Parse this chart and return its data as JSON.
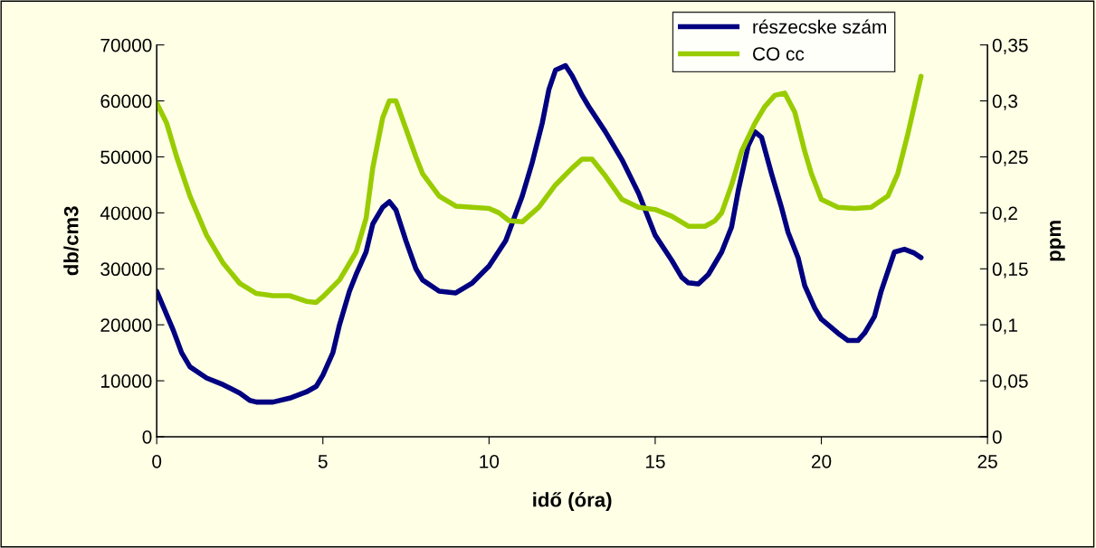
{
  "chart_data": {
    "type": "line",
    "xlabel": "idő (óra)",
    "ylabel": "db/cm3",
    "y2label": "ppm",
    "xlim": [
      0,
      25
    ],
    "xticks": [
      0,
      5,
      10,
      15,
      20,
      25
    ],
    "ylim": [
      0,
      70000
    ],
    "yticks": [
      0,
      10000,
      20000,
      30000,
      40000,
      50000,
      60000,
      70000
    ],
    "y2lim": [
      0,
      0.35
    ],
    "y2ticks": [
      {
        "value": 0,
        "label": "0"
      },
      {
        "value": 0.05,
        "label": "0,05"
      },
      {
        "value": 0.1,
        "label": "0,1"
      },
      {
        "value": 0.15,
        "label": "0,15"
      },
      {
        "value": 0.2,
        "label": "0,2"
      },
      {
        "value": 0.25,
        "label": "0,25"
      },
      {
        "value": 0.3,
        "label": "0,3"
      },
      {
        "value": 0.35,
        "label": "0,35"
      }
    ],
    "grid": false,
    "legend": "top right",
    "marker": "none",
    "line_style": "solid",
    "series": [
      {
        "name": "részecske szám",
        "color": "#000080",
        "x": [
          0,
          0.5,
          0.75,
          1,
          1.5,
          2,
          2.5,
          2.8,
          3,
          3.5,
          4,
          4.5,
          4.8,
          5,
          5.3,
          5.5,
          5.8,
          6,
          6.3,
          6.5,
          6.8,
          7,
          7.2,
          7.5,
          7.8,
          8,
          8.5,
          9,
          9.5,
          10,
          10.5,
          11,
          11.3,
          11.6,
          11.8,
          12,
          12.3,
          12.5,
          12.8,
          13,
          13.5,
          14,
          14.5,
          14.8,
          15,
          15.5,
          15.8,
          16,
          16.3,
          16.6,
          17,
          17.3,
          17.5,
          17.8,
          18,
          18.2,
          18.5,
          18.8,
          19,
          19.3,
          19.5,
          19.8,
          20,
          20.5,
          20.8,
          21.1,
          21.3,
          21.6,
          21.8,
          22,
          22.2,
          22.5,
          22.8,
          23
        ],
        "values": [
          26000,
          19000,
          15000,
          12500,
          10500,
          9300,
          7800,
          6500,
          6200,
          6200,
          6900,
          8000,
          9000,
          11000,
          15000,
          20000,
          26000,
          29000,
          33000,
          38000,
          41000,
          42000,
          40500,
          35000,
          30000,
          28000,
          26000,
          25700,
          27500,
          30500,
          35000,
          43000,
          49000,
          56000,
          62000,
          65500,
          66300,
          64500,
          61000,
          59000,
          54500,
          49500,
          43500,
          39000,
          36000,
          31500,
          28500,
          27500,
          27300,
          29000,
          33000,
          37500,
          44000,
          52000,
          54500,
          53500,
          47000,
          41000,
          36500,
          32000,
          27000,
          23000,
          21000,
          18500,
          17200,
          17200,
          18500,
          21500,
          26000,
          29500,
          33000,
          33500,
          32800,
          32000
        ]
      },
      {
        "name": "CO cc",
        "color": "#99cc00",
        "axis": "y2",
        "x": [
          0,
          0.3,
          0.6,
          1,
          1.5,
          2,
          2.5,
          3,
          3.5,
          4,
          4.5,
          4.8,
          5,
          5.5,
          6,
          6.3,
          6.5,
          6.8,
          7,
          7.2,
          7.5,
          7.8,
          8,
          8.5,
          9,
          9.5,
          10,
          10.3,
          10.6,
          11,
          11.5,
          12,
          12.5,
          12.8,
          13.1,
          13.5,
          14,
          14.5,
          15,
          15.5,
          16,
          16.5,
          16.8,
          17,
          17.3,
          17.6,
          18,
          18.3,
          18.6,
          18.9,
          19.2,
          19.5,
          19.7,
          20,
          20.5,
          21,
          21.5,
          22,
          22.3,
          22.6,
          23
        ],
        "values": [
          0.298,
          0.28,
          0.25,
          0.215,
          0.18,
          0.155,
          0.137,
          0.128,
          0.126,
          0.126,
          0.121,
          0.12,
          0.125,
          0.14,
          0.165,
          0.195,
          0.24,
          0.285,
          0.3,
          0.3,
          0.275,
          0.25,
          0.235,
          0.215,
          0.206,
          0.205,
          0.204,
          0.2,
          0.193,
          0.192,
          0.205,
          0.225,
          0.24,
          0.248,
          0.248,
          0.233,
          0.212,
          0.205,
          0.203,
          0.197,
          0.188,
          0.188,
          0.193,
          0.2,
          0.225,
          0.255,
          0.28,
          0.295,
          0.305,
          0.307,
          0.29,
          0.255,
          0.235,
          0.212,
          0.205,
          0.204,
          0.205,
          0.215,
          0.235,
          0.27,
          0.322
        ]
      }
    ]
  }
}
